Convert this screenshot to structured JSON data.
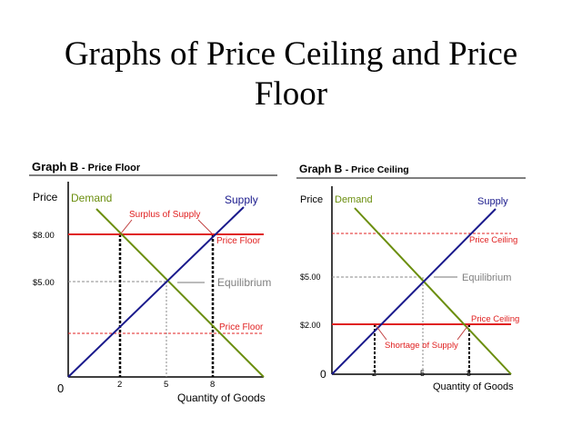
{
  "slide": {
    "title_line1": "Graphs of Price Ceiling and Price",
    "title_line2": "Floor"
  },
  "colors": {
    "demand": "#6b8e0e",
    "supply": "#1a1a8c",
    "control": "#e02020",
    "equilibrium": "#808080"
  },
  "graph_floor": {
    "header_bold": "Graph B",
    "header_sub": "- Price Floor",
    "y_label": "Price",
    "x_label": "Quantity of Goods",
    "origin": "0",
    "price_ticks": [
      "$8.00",
      "$5.00"
    ],
    "qty_ticks": [
      "2",
      "5",
      "8"
    ],
    "demand_label": "Demand",
    "supply_label": "Supply",
    "surplus_label": "Surplus of Supply",
    "floor_label": "Price Floor",
    "floor_label_low": "Price Floor",
    "equilibrium_label": "Equilibrium"
  },
  "graph_ceiling": {
    "header_bold": "Graph B",
    "header_sub": "- Price Ceiling",
    "y_label": "Price",
    "x_label": "Quantity of Goods",
    "origin": "0",
    "price_ticks": [
      "$5.00",
      "$2.00"
    ],
    "qty_ticks": [
      "2",
      "5",
      "8"
    ],
    "demand_label": "Demand",
    "supply_label": "Supply",
    "shortage_label": "Shortage of Supply",
    "ceiling_label_high": "Price Ceiling",
    "ceiling_label": "Price Ceiling",
    "equilibrium_label": "Equilibrium"
  }
}
